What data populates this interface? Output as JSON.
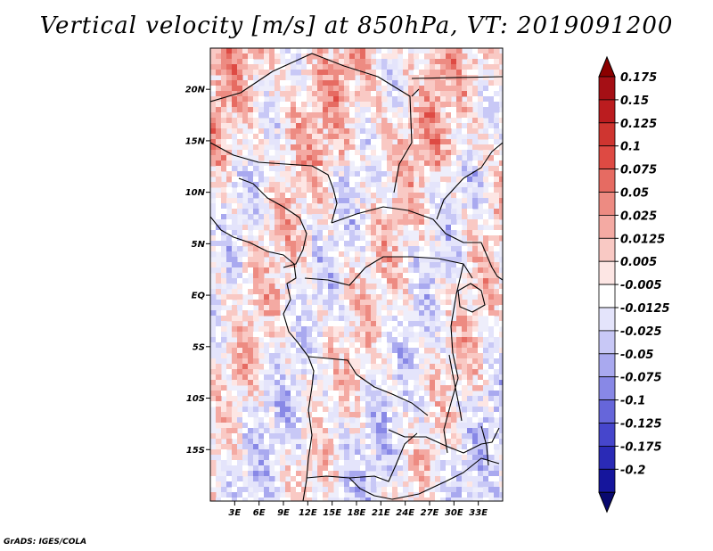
{
  "header": {
    "title": "Vertical velocity [m/s] at 850hPa, VT: 2019091200"
  },
  "map": {
    "lon_range": [
      0,
      36
    ],
    "lat_range": [
      -20,
      24
    ],
    "lat_ticks": [
      {
        "value": 20,
        "label": "20N"
      },
      {
        "value": 15,
        "label": "15N"
      },
      {
        "value": 10,
        "label": "10N"
      },
      {
        "value": 5,
        "label": "5N"
      },
      {
        "value": 0,
        "label": "EQ"
      },
      {
        "value": -5,
        "label": "5S"
      },
      {
        "value": -10,
        "label": "10S"
      },
      {
        "value": -15,
        "label": "15S"
      }
    ],
    "lon_ticks": [
      {
        "value": 3,
        "label": "3E"
      },
      {
        "value": 6,
        "label": "6E"
      },
      {
        "value": 9,
        "label": "9E"
      },
      {
        "value": 12,
        "label": "12E"
      },
      {
        "value": 15,
        "label": "15E"
      },
      {
        "value": 18,
        "label": "18E"
      },
      {
        "value": 21,
        "label": "21E"
      },
      {
        "value": 24,
        "label": "24E"
      },
      {
        "value": 27,
        "label": "27E"
      },
      {
        "value": 30,
        "label": "30E"
      },
      {
        "value": 33,
        "label": "33E"
      }
    ]
  },
  "colorbar": {
    "levels": [
      {
        "label": "0.175",
        "color": "#a50f15"
      },
      {
        "label": "0.15",
        "color": "#bb1c1f"
      },
      {
        "label": "0.125",
        "color": "#cf3530"
      },
      {
        "label": "0.1",
        "color": "#de4a43"
      },
      {
        "label": "0.075",
        "color": "#e66b62"
      },
      {
        "label": "0.05",
        "color": "#ed8b82"
      },
      {
        "label": "0.025",
        "color": "#f4aaa3"
      },
      {
        "label": "0.0125",
        "color": "#f9c9c4"
      },
      {
        "label": "0.005",
        "color": "#fde6e4"
      },
      {
        "label": "-0.005",
        "color": "#ffffff"
      },
      {
        "label": "-0.0125",
        "color": "#e4e4fb"
      },
      {
        "label": "-0.025",
        "color": "#c8c8f6"
      },
      {
        "label": "-0.05",
        "color": "#a9a9ef"
      },
      {
        "label": "-0.075",
        "color": "#8888e6"
      },
      {
        "label": "-0.1",
        "color": "#6666da"
      },
      {
        "label": "-0.125",
        "color": "#4646cc"
      },
      {
        "label": "-0.175",
        "color": "#2a2ab6"
      },
      {
        "label": "-0.2",
        "color": "#15159c"
      }
    ],
    "top_color": "#8b0000",
    "bottom_color": "#08086e"
  },
  "footer": {
    "credit": "GrADS: IGES/COLA"
  }
}
